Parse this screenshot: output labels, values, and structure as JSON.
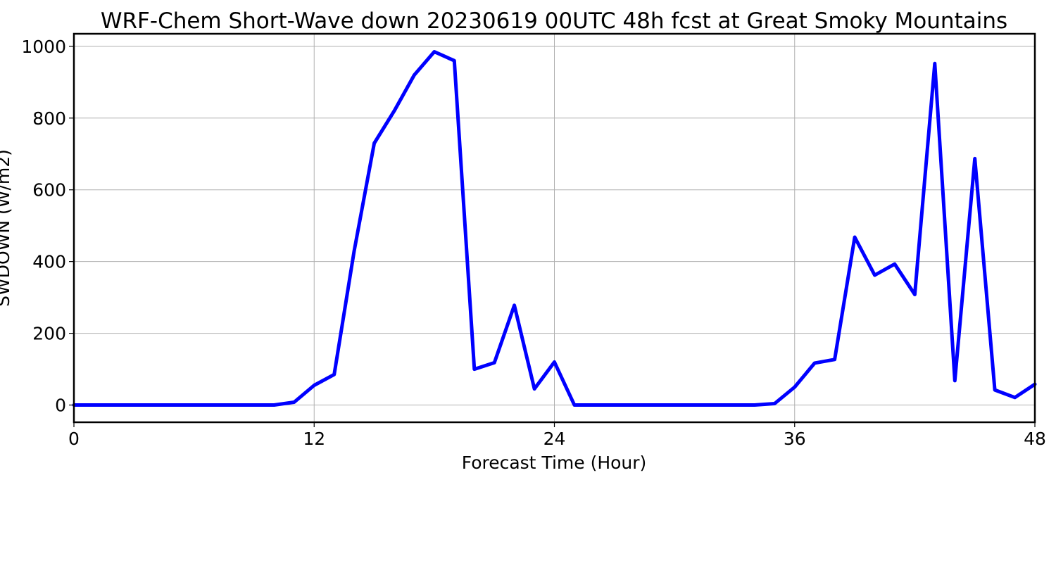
{
  "chart_data": {
    "type": "line",
    "title": "WRF-Chem Short-Wave down  20230619 00UTC 48h fcst at Great Smoky Mountains",
    "xlabel": "Forecast Time (Hour)",
    "ylabel": "SWDOWN  (W/m2)",
    "xlim": [
      0,
      48
    ],
    "ylim": [
      -48,
      1035
    ],
    "x_ticks": [
      0,
      12,
      24,
      36,
      48
    ],
    "y_ticks": [
      0,
      200,
      400,
      600,
      800,
      1000
    ],
    "grid": true,
    "series": [
      {
        "color": "#0000ff",
        "x": [
          0,
          1,
          2,
          3,
          4,
          5,
          6,
          7,
          8,
          9,
          10,
          11,
          12,
          13,
          14,
          15,
          16,
          17,
          18,
          19,
          20,
          21,
          22,
          23,
          24,
          25,
          26,
          27,
          28,
          29,
          30,
          31,
          32,
          33,
          34,
          35,
          36,
          37,
          38,
          39,
          40,
          41,
          42,
          43,
          44,
          45,
          46,
          47,
          48
        ],
        "values": [
          0,
          0,
          0,
          0,
          0,
          0,
          0,
          0,
          0,
          0,
          0,
          8,
          55,
          85,
          430,
          730,
          820,
          920,
          985,
          960,
          100,
          118,
          278,
          45,
          120,
          0,
          0,
          0,
          0,
          0,
          0,
          0,
          0,
          0,
          0,
          4,
          50,
          117,
          127,
          468,
          362,
          393,
          308,
          952,
          68,
          687,
          42,
          21,
          58
        ]
      }
    ]
  }
}
